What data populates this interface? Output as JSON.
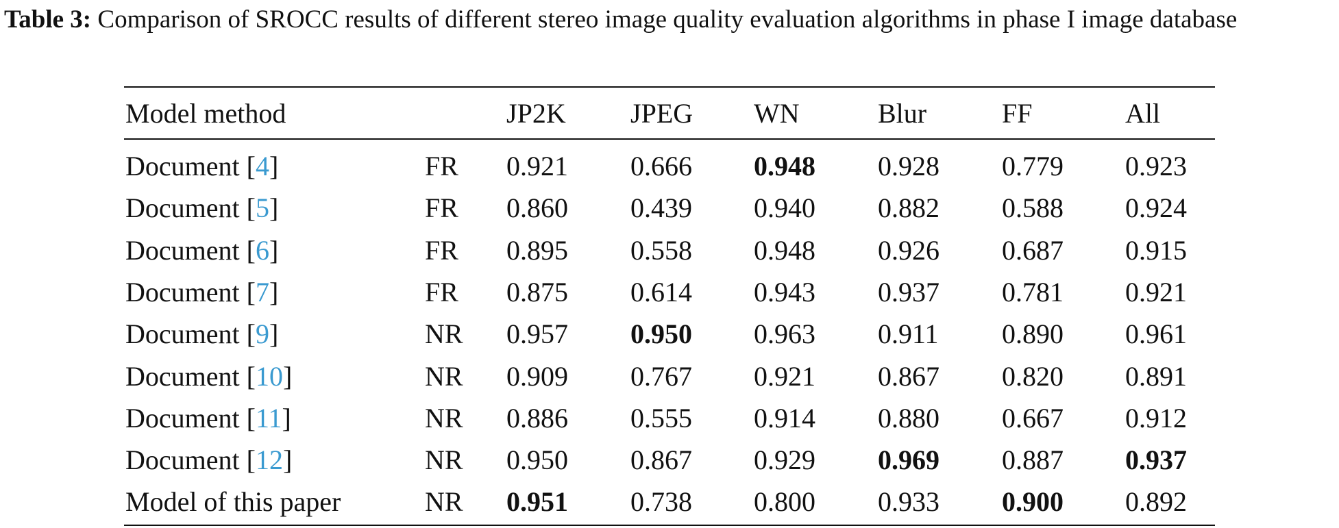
{
  "caption": {
    "label": "Table 3:",
    "text": "Comparison of SROCC results of different stereo image quality evaluation algorithms in phase I image database"
  },
  "table": {
    "header": [
      "Model method",
      "JP2K",
      "JPEG",
      "WN",
      "Blur",
      "FF",
      "All"
    ],
    "rows": [
      {
        "method": [
          "Document [",
          "4",
          "]"
        ],
        "type": "FR",
        "values": [
          "0.921",
          "0.666",
          "0.948",
          "0.928",
          "0.779",
          "0.923"
        ],
        "bold": [
          2
        ]
      },
      {
        "method": [
          "Document [",
          "5",
          "]"
        ],
        "type": "FR",
        "values": [
          "0.860",
          "0.439",
          "0.940",
          "0.882",
          "0.588",
          "0.924"
        ],
        "bold": []
      },
      {
        "method": [
          "Document [",
          "6",
          "]"
        ],
        "type": "FR",
        "values": [
          "0.895",
          "0.558",
          "0.948",
          "0.926",
          "0.687",
          "0.915"
        ],
        "bold": []
      },
      {
        "method": [
          "Document [",
          "7",
          "]"
        ],
        "type": "FR",
        "values": [
          "0.875",
          "0.614",
          "0.943",
          "0.937",
          "0.781",
          "0.921"
        ],
        "bold": []
      },
      {
        "method": [
          "Document [",
          "9",
          "]"
        ],
        "type": "NR",
        "values": [
          "0.957",
          "0.950",
          "0.963",
          "0.911",
          "0.890",
          "0.961"
        ],
        "bold": [
          1
        ]
      },
      {
        "method": [
          "Document [",
          "10",
          "]"
        ],
        "type": "NR",
        "values": [
          "0.909",
          "0.767",
          "0.921",
          "0.867",
          "0.820",
          "0.891"
        ],
        "bold": []
      },
      {
        "method": [
          "Document [",
          "11",
          "]"
        ],
        "type": "NR",
        "values": [
          "0.886",
          "0.555",
          "0.914",
          "0.880",
          "0.667",
          "0.912"
        ],
        "bold": []
      },
      {
        "method": [
          "Document [",
          "12",
          "]"
        ],
        "type": "NR",
        "values": [
          "0.950",
          "0.867",
          "0.929",
          "0.969",
          "0.887",
          "0.937"
        ],
        "bold": [
          3,
          5
        ]
      },
      {
        "method": [
          "Model of this paper"
        ],
        "type": "NR",
        "values": [
          "0.951",
          "0.738",
          "0.800",
          "0.933",
          "0.900",
          "0.892"
        ],
        "bold": [
          0,
          4
        ]
      }
    ]
  }
}
